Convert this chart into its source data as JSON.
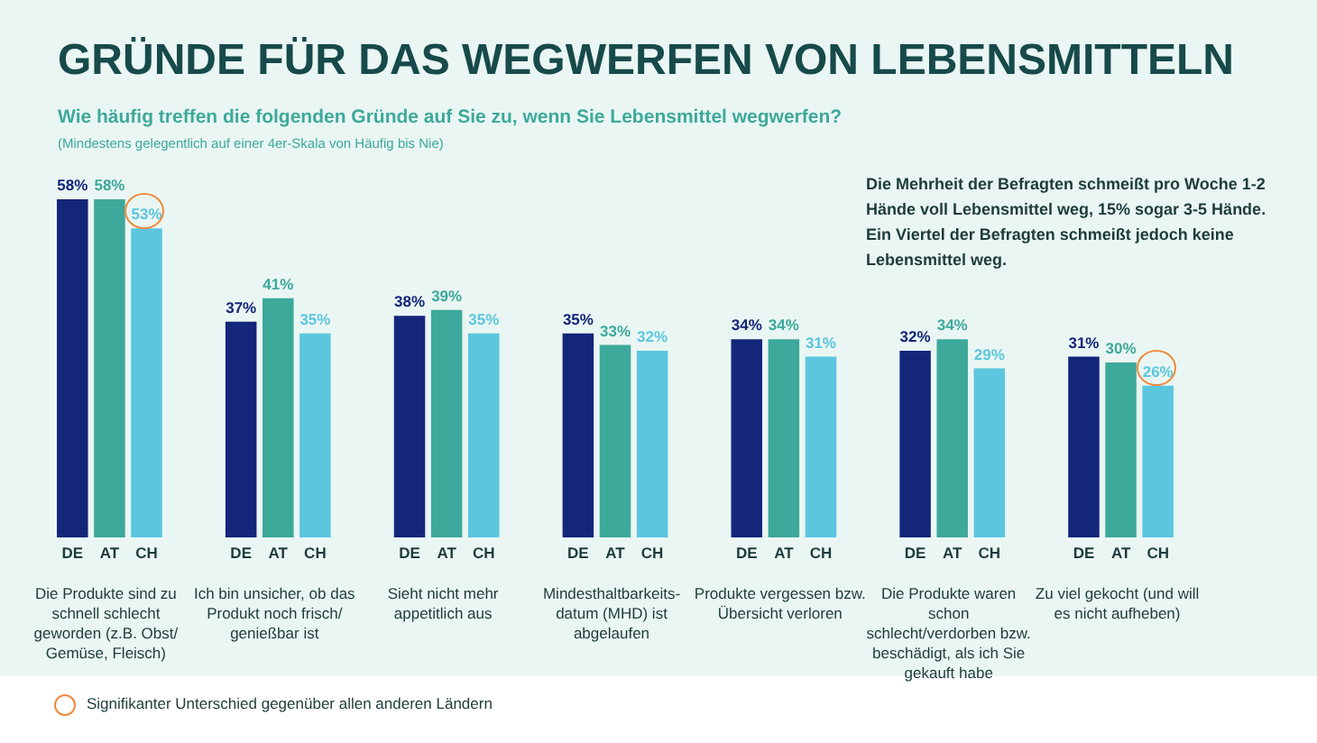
{
  "chart_data": {
    "type": "bar",
    "title": "GRÜNDE FÜR DAS WEGWERFEN VON LEBENSMITTELN",
    "subtitle": "Wie häufig treffen die folgenden Gründe auf Sie zu, wenn Sie Lebensmittel wegwerfen?",
    "categories": [
      "Die Produkte sind zu schnell schlecht geworden (z.B. Obst/ Gemüse, Fleisch)",
      "Ich bin unsicher, ob das Produkt noch frisch/ genießbar ist",
      "Sieht nicht mehr appetitlich aus",
      "Mindesthaltbarkeits-datum (MHD) ist abgelaufen",
      "Produkte vergessen bzw. Übersicht verloren",
      "Die Produkte waren schon schlecht/verdorben bzw. beschädigt, als ich Sie gekauft habe",
      "Zu viel gekocht (und will es nicht aufheben)"
    ],
    "series": [
      {
        "name": "DE",
        "color": "#14267a",
        "values": [
          58,
          37,
          38,
          35,
          34,
          32,
          31
        ],
        "value_labels": [
          "58%",
          "37%",
          "38%",
          "35%",
          "34%",
          "32%",
          "31%"
        ]
      },
      {
        "name": "AT",
        "color": "#3da99b",
        "values": [
          58,
          41,
          39,
          33,
          34,
          34,
          30
        ],
        "value_labels": [
          "58%",
          "41%",
          "39%",
          "33%",
          "34%",
          "34%",
          "30%"
        ]
      },
      {
        "name": "CH",
        "color": "#5cc6df",
        "values": [
          53,
          35,
          35,
          32,
          31,
          29,
          26
        ],
        "value_labels": [
          "53%",
          "35%",
          "35%",
          "32%",
          "31%",
          "29%",
          "26%"
        ]
      }
    ],
    "annotations": [
      "(Mindestens gelegentlich auf einer 4er-Skala von Häufig bis Nie)",
      "Die Mehrheit der Befragten schmeißt pro Woche 1-2 Hände voll Lebensmittel weg, 15% sogar 3-5 Hände. Ein Viertel der Befragten schmeißt jedoch keine Lebensmittel weg.",
      "Signifikanter Unterschied gegenüber allen anderen Ländern"
    ],
    "legend": false
  }
}
